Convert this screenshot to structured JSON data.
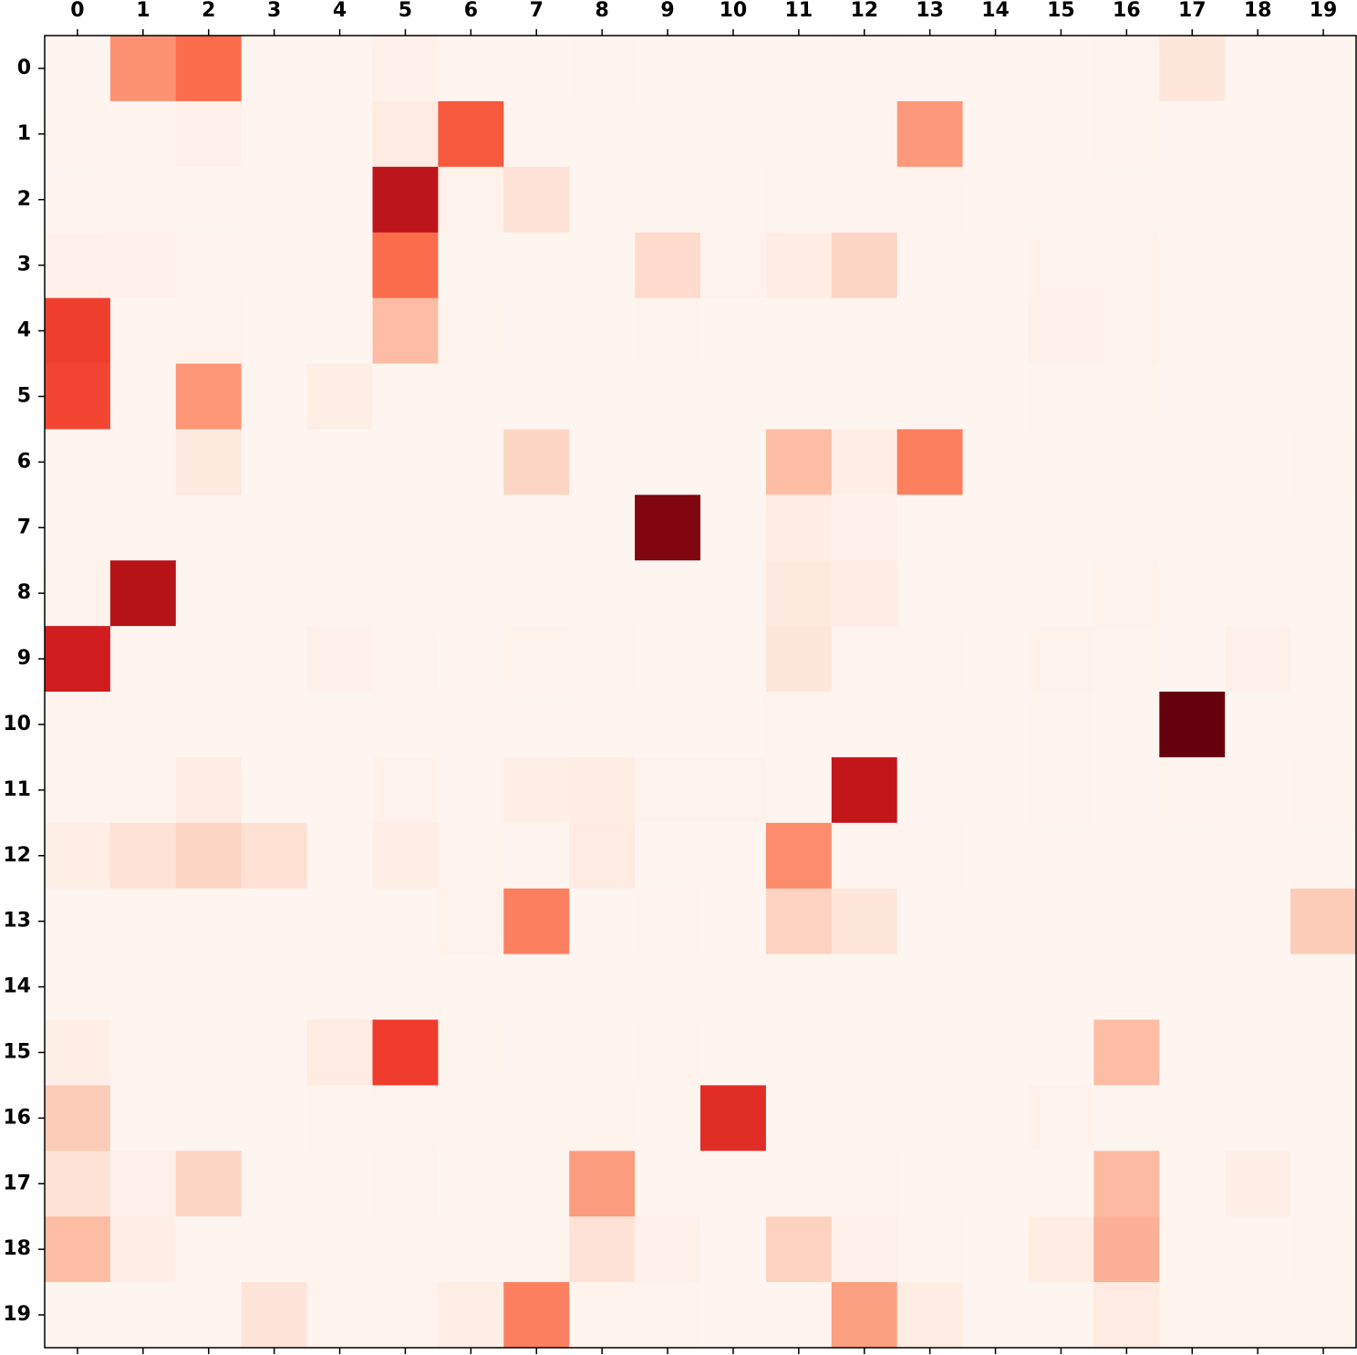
{
  "chart_data": {
    "type": "heatmap",
    "colormap": "Reds",
    "x_categories": [
      0,
      1,
      2,
      3,
      4,
      5,
      6,
      7,
      8,
      9,
      10,
      11,
      12,
      13,
      14,
      15,
      16,
      17,
      18,
      19
    ],
    "y_categories": [
      0,
      1,
      2,
      3,
      4,
      5,
      6,
      7,
      8,
      9,
      10,
      11,
      12,
      13,
      14,
      15,
      16,
      17,
      18,
      19
    ],
    "values": [
      [
        0.01,
        0.38,
        0.5,
        0.01,
        0.01,
        0.04,
        0.01,
        0.01,
        0.02,
        0.01,
        0.01,
        0.01,
        0.02,
        0.01,
        0.01,
        0.01,
        0.02,
        0.1,
        0.01,
        0.01
      ],
      [
        0.02,
        0.01,
        0.04,
        0.01,
        0.01,
        0.07,
        0.55,
        0.01,
        0.01,
        0.01,
        0.01,
        0.01,
        0.01,
        0.36,
        0.01,
        0.01,
        0.02,
        0.01,
        0.01,
        0.01
      ],
      [
        0.01,
        0.02,
        0.01,
        0.01,
        0.01,
        0.8,
        0.03,
        0.12,
        0.01,
        0.01,
        0.01,
        0.02,
        0.02,
        0.02,
        0.01,
        0.01,
        0.01,
        0.01,
        0.01,
        0.01
      ],
      [
        0.04,
        0.04,
        0.02,
        0.01,
        0.01,
        0.5,
        0.01,
        0.01,
        0.01,
        0.15,
        0.03,
        0.06,
        0.17,
        0.01,
        0.01,
        0.03,
        0.03,
        0.01,
        0.01,
        0.01
      ],
      [
        0.62,
        0.01,
        0.03,
        0.01,
        0.01,
        0.25,
        0.02,
        0.01,
        0.01,
        0.02,
        0.01,
        0.01,
        0.02,
        0.01,
        0.01,
        0.04,
        0.03,
        0.01,
        0.01,
        0.01
      ],
      [
        0.6,
        0.01,
        0.37,
        0.01,
        0.05,
        0.01,
        0.01,
        0.01,
        0.01,
        0.01,
        0.01,
        0.01,
        0.01,
        0.01,
        0.01,
        0.02,
        0.02,
        0.01,
        0.01,
        0.01
      ],
      [
        0.01,
        0.01,
        0.08,
        0.01,
        0.01,
        0.01,
        0.01,
        0.17,
        0.01,
        0.01,
        0.01,
        0.25,
        0.05,
        0.44,
        0.01,
        0.01,
        0.01,
        0.01,
        0.01,
        0.02
      ],
      [
        0.01,
        0.01,
        0.02,
        0.01,
        0.01,
        0.01,
        0.01,
        0.01,
        0.01,
        0.95,
        0.01,
        0.06,
        0.04,
        0.01,
        0.01,
        0.01,
        0.01,
        0.01,
        0.01,
        0.01
      ],
      [
        0.03,
        0.82,
        0.01,
        0.01,
        0.01,
        0.01,
        0.01,
        0.01,
        0.01,
        0.01,
        0.01,
        0.08,
        0.06,
        0.01,
        0.01,
        0.01,
        0.03,
        0.01,
        0.01,
        0.01
      ],
      [
        0.74,
        0.01,
        0.02,
        0.01,
        0.04,
        0.02,
        0.01,
        0.03,
        0.02,
        0.01,
        0.01,
        0.1,
        0.02,
        0.02,
        0.01,
        0.03,
        0.02,
        0.01,
        0.04,
        0.01
      ],
      [
        0.02,
        0.02,
        0.01,
        0.01,
        0.01,
        0.01,
        0.01,
        0.01,
        0.01,
        0.01,
        0.01,
        0.02,
        0.02,
        0.01,
        0.01,
        0.02,
        0.01,
        1.0,
        0.01,
        0.01
      ],
      [
        0.02,
        0.02,
        0.06,
        0.01,
        0.01,
        0.03,
        0.01,
        0.05,
        0.06,
        0.03,
        0.03,
        0.01,
        0.78,
        0.01,
        0.01,
        0.02,
        0.01,
        0.02,
        0.01,
        0.02
      ],
      [
        0.05,
        0.12,
        0.17,
        0.13,
        0.01,
        0.05,
        0.02,
        0.01,
        0.07,
        0.01,
        0.01,
        0.4,
        0.01,
        0.02,
        0.01,
        0.01,
        0.01,
        0.01,
        0.01,
        0.01
      ],
      [
        0.01,
        0.01,
        0.01,
        0.01,
        0.01,
        0.01,
        0.03,
        0.44,
        0.01,
        0.02,
        0.01,
        0.18,
        0.1,
        0.01,
        0.01,
        0.01,
        0.01,
        0.01,
        0.01,
        0.2
      ],
      [
        0.01,
        0.01,
        0.01,
        0.01,
        0.01,
        0.01,
        0.01,
        0.01,
        0.01,
        0.01,
        0.01,
        0.01,
        0.01,
        0.01,
        0.01,
        0.01,
        0.01,
        0.01,
        0.01,
        0.01
      ],
      [
        0.05,
        0.01,
        0.01,
        0.01,
        0.07,
        0.63,
        0.02,
        0.01,
        0.01,
        0.02,
        0.01,
        0.01,
        0.01,
        0.01,
        0.01,
        0.01,
        0.25,
        0.01,
        0.01,
        0.01
      ],
      [
        0.2,
        0.01,
        0.01,
        0.01,
        0.02,
        0.03,
        0.02,
        0.02,
        0.02,
        0.01,
        0.68,
        0.01,
        0.02,
        0.01,
        0.01,
        0.03,
        0.01,
        0.01,
        0.01,
        0.01
      ],
      [
        0.12,
        0.04,
        0.17,
        0.01,
        0.01,
        0.02,
        0.01,
        0.01,
        0.35,
        0.01,
        0.01,
        0.01,
        0.03,
        0.01,
        0.01,
        0.01,
        0.26,
        0.01,
        0.05,
        0.01
      ],
      [
        0.25,
        0.05,
        0.01,
        0.01,
        0.01,
        0.01,
        0.01,
        0.01,
        0.12,
        0.04,
        0.01,
        0.18,
        0.04,
        0.02,
        0.01,
        0.06,
        0.29,
        0.01,
        0.01,
        0.02
      ],
      [
        0.01,
        0.01,
        0.01,
        0.11,
        0.02,
        0.02,
        0.05,
        0.44,
        0.02,
        0.02,
        0.01,
        0.01,
        0.34,
        0.06,
        0.01,
        0.01,
        0.07,
        0.02,
        0.02,
        0.02
      ]
    ]
  }
}
